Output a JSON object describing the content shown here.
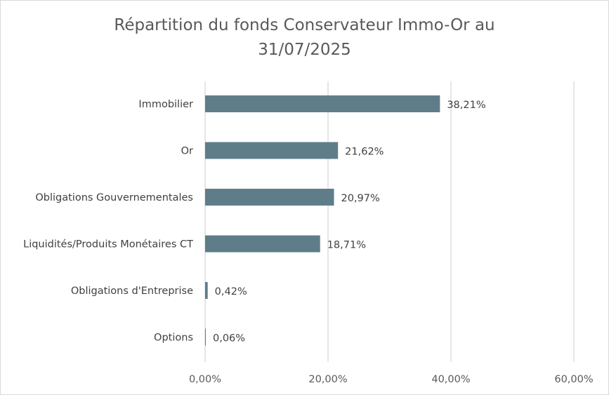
{
  "chart_data": {
    "type": "bar",
    "orientation": "horizontal",
    "title": "Répartition du fonds Conservateur Immo-Or au 31/07/2025",
    "title_lines": [
      "Répartition du fonds Conservateur Immo-Or au",
      "31/07/2025"
    ],
    "categories": [
      "Immobilier",
      "Or",
      "Obligations Gouvernementales",
      "Liquidités/Produits Monétaires CT",
      "Obligations d'Entreprise",
      "Options"
    ],
    "values": [
      38.21,
      21.62,
      20.97,
      18.71,
      0.42,
      0.06
    ],
    "data_labels": [
      "38,21%",
      "21,62%",
      "20,97%",
      "18,71%",
      "0,42%",
      "0,06%"
    ],
    "xlim": [
      0,
      60
    ],
    "x_ticks": [
      0,
      20,
      40,
      60
    ],
    "x_tick_labels": [
      "0,00%",
      "20,00%",
      "40,00%",
      "60,00%"
    ],
    "xlabel": "",
    "ylabel": "",
    "grid": "vertical",
    "legend": "none",
    "colors": {
      "bar": "#5f7d89",
      "grid": "#d9d9d9",
      "text": "#595959"
    }
  }
}
